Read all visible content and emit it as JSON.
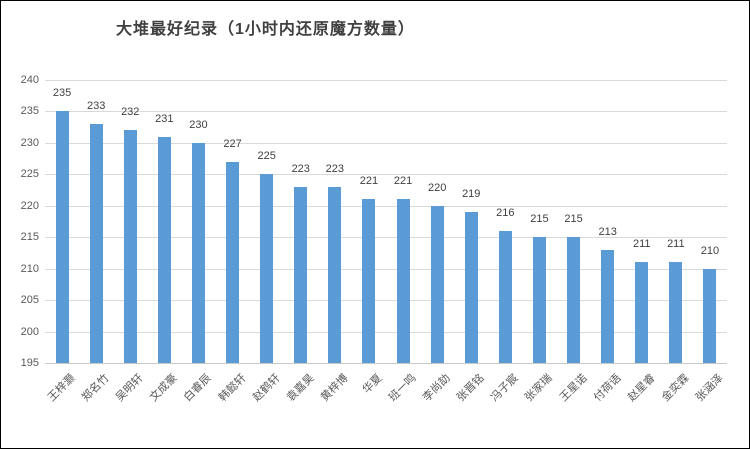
{
  "chart_data": {
    "type": "bar",
    "title": "大堆最好纪录（1小时内还原魔方数量）",
    "categories": [
      "王梓灏",
      "郑名竹",
      "吴明轩",
      "文成豪",
      "白睿辰",
      "韩懿轩",
      "赵鹤轩",
      "袁嘉昊",
      "黄梓博",
      "华夏",
      "班一鸣",
      "李尚劼",
      "张晋铭",
      "冯子宸",
      "张家瑞",
      "王星诺",
      "付荷语",
      "赵星睿",
      "金奕霖",
      "张涵泽"
    ],
    "values": [
      235,
      233,
      232,
      231,
      230,
      227,
      225,
      223,
      223,
      221,
      221,
      220,
      219,
      216,
      215,
      215,
      213,
      211,
      211,
      210
    ],
    "xlabel": "",
    "ylabel": "",
    "ylim": [
      195,
      240
    ],
    "ytick_step": 5,
    "yticks": [
      195,
      200,
      205,
      210,
      215,
      220,
      225,
      230,
      235,
      240
    ],
    "grid": true,
    "legend": "none",
    "data_labels": "outside-end",
    "bar_color": "#5b9bd5",
    "gridline_color": "#d9d9d9",
    "title_color": "#404040",
    "axis_text_color": "#595959",
    "value_label_color": "#404040"
  }
}
